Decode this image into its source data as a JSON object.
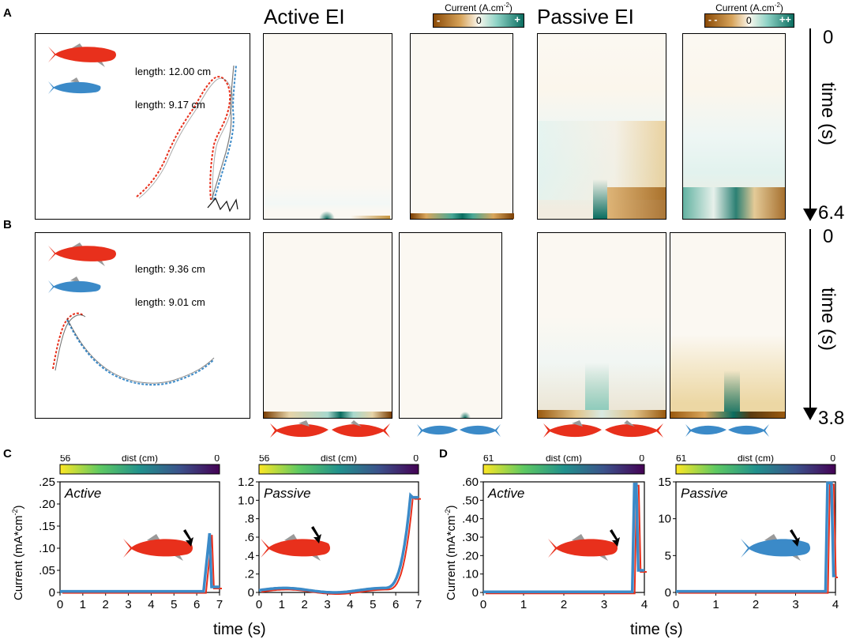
{
  "panel_letters": {
    "a": "A",
    "b": "B",
    "c": "C",
    "d": "D"
  },
  "top": {
    "active_title": "Active EI",
    "passive_title": "Passive EI",
    "cbar1": {
      "title": "Current (A.cm",
      "sup": "-2",
      "close": ")",
      "neg": "-",
      "zero": "0",
      "pos": "+"
    },
    "cbar2": {
      "title": "Current (A.cm",
      "sup": "-2",
      "close": ")",
      "neg": "- -",
      "zero": "0",
      "pos": "++"
    }
  },
  "row_a": {
    "fish1_length": "length: 12.00 cm",
    "fish2_length": "length: 9.17 cm",
    "time_label": "time (s)",
    "time_start": "0",
    "time_end": "6.4"
  },
  "row_b": {
    "fish1_length": "length: 9.36 cm",
    "fish2_length": "length: 9.01 cm",
    "time_label": "time (s)",
    "time_start": "0",
    "time_end": "3.8"
  },
  "colors": {
    "red_fish": "#e8301c",
    "blue_fish": "#3b8ac8",
    "teal": "#0a7b6c",
    "brown": "#9a5a0f"
  },
  "panel_c": {
    "ylabel": "Current (mA*cm",
    "ylabel_sup": "-2",
    "ylabel_close": ")",
    "xlabel": "time (s)",
    "active": {
      "label": "Active",
      "cbar_left": "56",
      "cbar_mid": "dist (cm)",
      "cbar_right": "0",
      "yticks": [
        ".25",
        ".20",
        ".15",
        ".10",
        ".05",
        "0"
      ],
      "xticks": [
        "0",
        "1",
        "2",
        "3",
        "4",
        "5",
        "6",
        "7"
      ]
    },
    "passive": {
      "label": "Passive",
      "cbar_left": "56",
      "cbar_mid": "dist (cm)",
      "cbar_right": "0",
      "yticks": [
        "1.2",
        "1.0",
        ".8",
        ".6",
        ".4",
        ".2",
        "0"
      ],
      "xticks": [
        "0",
        "1",
        "2",
        "3",
        "4",
        "5",
        "6",
        "7"
      ]
    }
  },
  "panel_d": {
    "active": {
      "label": "Active",
      "cbar_left": "61",
      "cbar_mid": "dist (cm)",
      "cbar_right": "0",
      "yticks": [
        ".60",
        ".50",
        ".40",
        ".30",
        ".20",
        ".10",
        "0"
      ],
      "xticks": [
        "0",
        "1",
        "2",
        "3",
        "4"
      ]
    },
    "passive": {
      "label": "Passive",
      "cbar_left": "61",
      "cbar_mid": "dist (cm)",
      "cbar_right": "0",
      "yticks": [
        "15",
        "10",
        "5",
        "0"
      ],
      "xticks": [
        "0",
        "1",
        "2",
        "3",
        "4"
      ]
    },
    "xlabel": "time (s)"
  }
}
